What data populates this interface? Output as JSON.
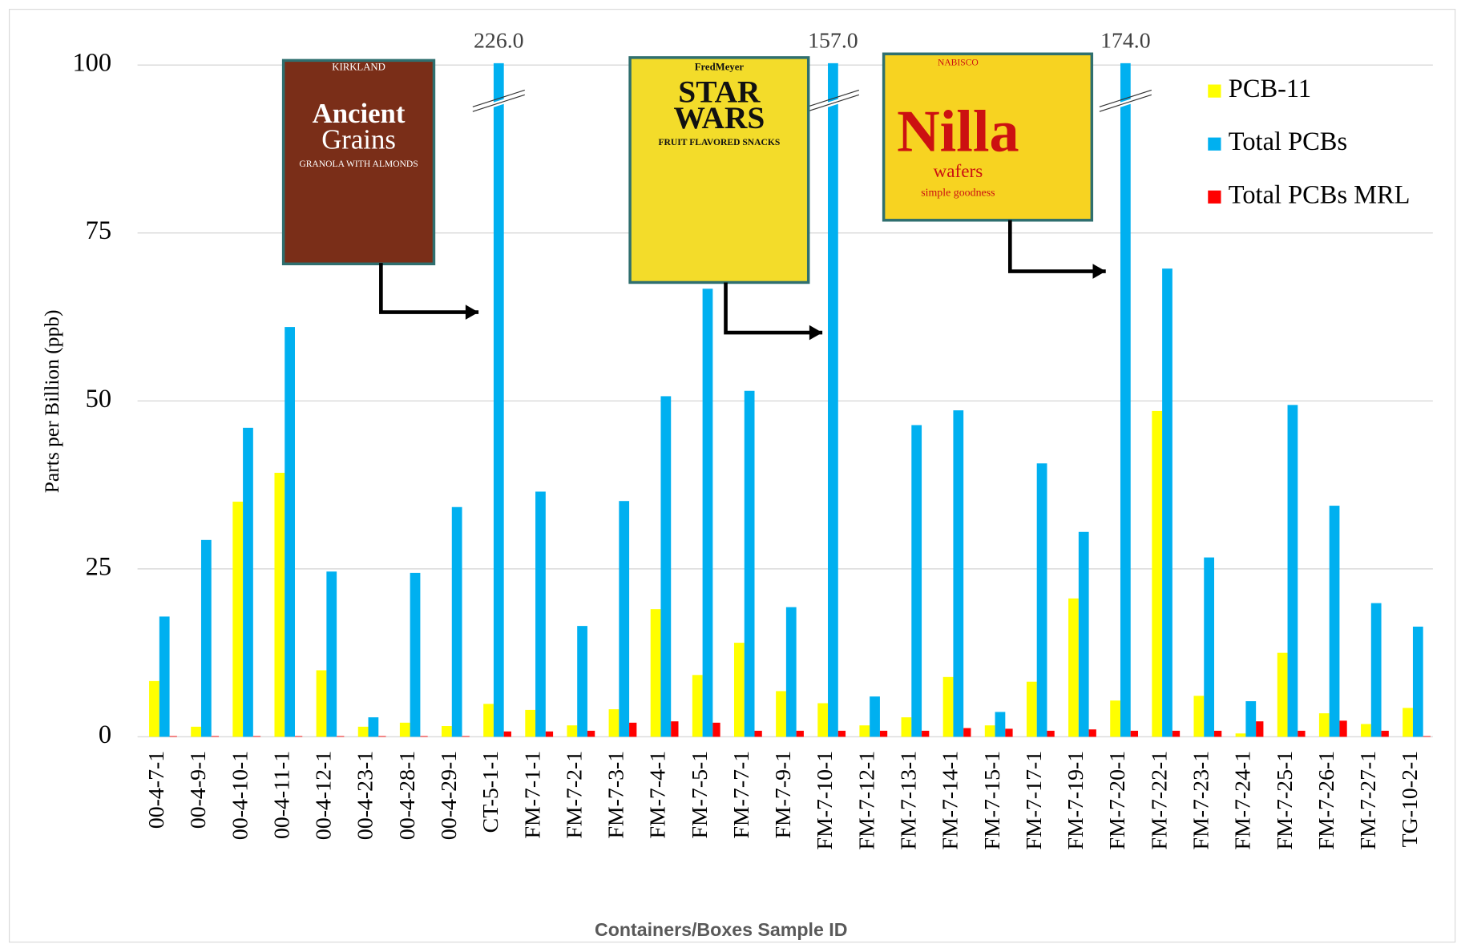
{
  "chart_data": {
    "type": "bar",
    "y_label": "Parts per Billion (ppb)",
    "x_label": "Containers/Boxes Sample ID",
    "categories": [
      "00-4-7-1",
      "00-4-9-1",
      "00-4-10-1",
      "00-4-11-1",
      "00-4-12-1",
      "00-4-23-1",
      "00-4-28-1",
      "00-4-29-1",
      "CT-5-1-1",
      "FM-7-1-1",
      "FM-7-2-1",
      "FM-7-3-1",
      "FM-7-4-1",
      "FM-7-5-1",
      "FM-7-7-1",
      "FM-7-9-1",
      "FM-7-10-1",
      "FM-7-12-1",
      "FM-7-13-1",
      "FM-7-14-1",
      "FM-7-15-1",
      "FM-7-17-1",
      "FM-7-19-1",
      "FM-7-20-1",
      "FM-7-22-1",
      "FM-7-23-1",
      "FM-7-24-1",
      "FM-7-25-1",
      "FM-7-26-1",
      "FM-7-27-1",
      "TG-10-2-1"
    ],
    "series": [
      {
        "name": "PCB-11",
        "color": "#ffff00",
        "values": [
          8.3,
          1.5,
          35,
          39.3,
          9.9,
          1.5,
          2.1,
          1.6,
          4.9,
          4,
          1.7,
          4.1,
          19,
          9.2,
          14,
          6.8,
          5,
          1.7,
          2.9,
          8.9,
          1.7,
          8.2,
          20.6,
          5.4,
          48.5,
          6.1,
          0.5,
          12.5,
          3.5,
          1.9,
          4.3
        ]
      },
      {
        "name": "Total PCBs",
        "color": "#00b0f0",
        "values": [
          17.9,
          29.3,
          46,
          61,
          24.6,
          2.9,
          24.4,
          34.2,
          226,
          36.5,
          16.5,
          35.1,
          50.7,
          66.7,
          51.5,
          19.3,
          157,
          6,
          46.4,
          48.6,
          3.7,
          40.7,
          30.5,
          174,
          69.7,
          26.7,
          5.3,
          49.4,
          34.4,
          19.9,
          16.4
        ],
        "value_labels": [
          null,
          null,
          null,
          null,
          null,
          null,
          null,
          null,
          "226.0",
          null,
          null,
          null,
          null,
          null,
          null,
          null,
          "157.0",
          null,
          null,
          null,
          null,
          null,
          null,
          "174.0",
          null,
          null,
          null,
          null,
          null,
          null,
          null
        ]
      },
      {
        "name": "Total PCBs MRL",
        "color": "#ff0000",
        "values": [
          0.1,
          0.1,
          0.1,
          0.1,
          0.1,
          0.1,
          0.1,
          0.1,
          0.8,
          0.8,
          0.9,
          2.1,
          2.3,
          2.1,
          0.9,
          0.9,
          0.9,
          0.9,
          0.9,
          1.3,
          1.2,
          0.9,
          1.1,
          0.9,
          0.9,
          0.9,
          2.3,
          0.9,
          2.4,
          0.9,
          0.1
        ]
      }
    ],
    "ylim": [
      0,
      100
    ],
    "yticks": [
      0,
      25,
      50,
      75,
      100
    ],
    "grid": true,
    "legend": "top-right",
    "images": [
      {
        "lines": [
          "KIRKLAND",
          "Ancient",
          "Grains",
          "GRANOLA WITH ALMONDS"
        ]
      },
      {
        "lines": [
          "FredMeyer",
          "STAR",
          "WARS",
          "FRUIT FLAVORED SNACKS"
        ]
      },
      {
        "lines": [
          "NABISCO",
          "Nilla",
          "wafers",
          "simple goodness"
        ]
      }
    ]
  }
}
